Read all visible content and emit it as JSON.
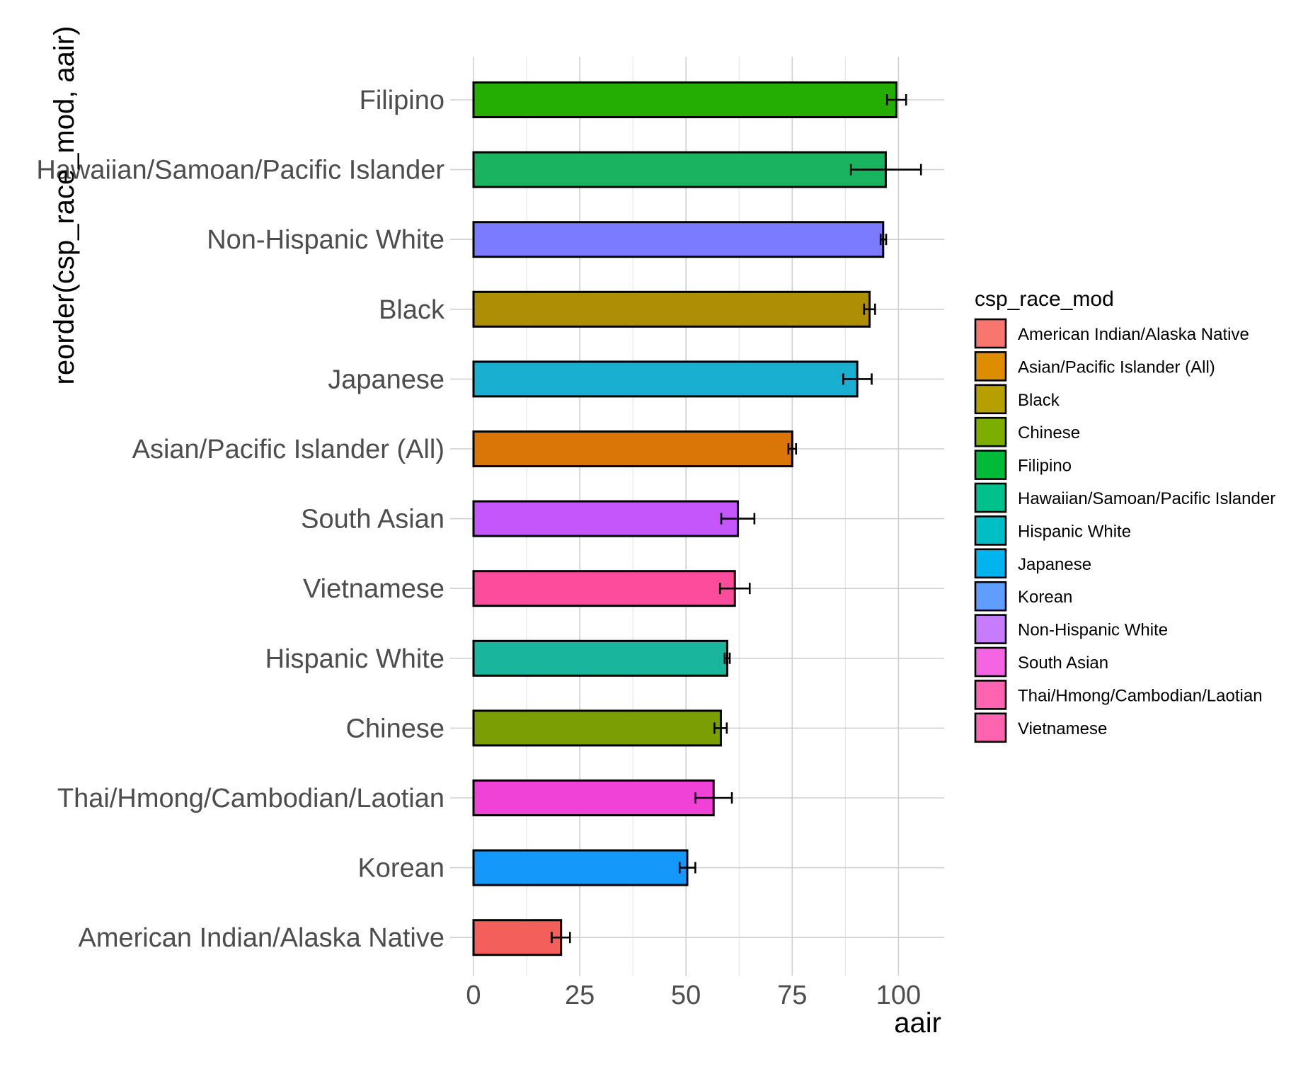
{
  "chart_data": {
    "type": "bar",
    "orientation": "horizontal",
    "xlabel": "aair",
    "ylabel": "reorder(csp_race_mod, aair)",
    "xlim": [
      0,
      110
    ],
    "xticks": [
      "0",
      "25",
      "50",
      "75",
      "100"
    ],
    "grid": true,
    "legend_position": "right",
    "legend": {
      "title": "csp_race_mod",
      "items": [
        {
          "label": "American Indian/Alaska Native",
          "color": "#F8766D"
        },
        {
          "label": "Asian/Pacific Islander (All)",
          "color": "#DE8C00"
        },
        {
          "label": "Black",
          "color": "#B79F00"
        },
        {
          "label": "Chinese",
          "color": "#7CAE00"
        },
        {
          "label": "Filipino",
          "color": "#00BA38"
        },
        {
          "label": "Hawaiian/Samoan/Pacific Islander",
          "color": "#00C08B"
        },
        {
          "label": "Hispanic White",
          "color": "#00BFC4"
        },
        {
          "label": "Japanese",
          "color": "#00B4F0"
        },
        {
          "label": "Korean",
          "color": "#619CFF"
        },
        {
          "label": "Non-Hispanic White",
          "color": "#C77CFF"
        },
        {
          "label": "South Asian",
          "color": "#F564E3"
        },
        {
          "label": "Thai/Hmong/Cambodian/Laotian",
          "color": "#FF64B0"
        },
        {
          "label": "Vietnamese",
          "color": "#FF64B0"
        }
      ]
    },
    "bars": [
      {
        "category": "Filipino",
        "value": 99.5,
        "err_low": 97.3,
        "err_high": 101.8,
        "color": "#24AE04"
      },
      {
        "category": "Hawaiian/Samoan/Pacific Islander",
        "value": 97.0,
        "err_low": 88.8,
        "err_high": 105.3,
        "color": "#1AB460"
      },
      {
        "category": "Non-Hispanic White",
        "value": 96.4,
        "err_low": 95.8,
        "err_high": 97.1,
        "color": "#7A7BFF"
      },
      {
        "category": "Black",
        "value": 93.2,
        "err_low": 91.9,
        "err_high": 94.5,
        "color": "#AD8E05"
      },
      {
        "category": "Japanese",
        "value": 90.3,
        "err_low": 87.0,
        "err_high": 93.7,
        "color": "#19AFD0"
      },
      {
        "category": "Asian/Pacific Islander (All)",
        "value": 75.0,
        "err_low": 74.1,
        "err_high": 75.9,
        "color": "#DA7508"
      },
      {
        "category": "South Asian",
        "value": 62.2,
        "err_low": 58.3,
        "err_high": 66.1,
        "color": "#C556FB"
      },
      {
        "category": "Vietnamese",
        "value": 61.5,
        "err_low": 58.0,
        "err_high": 65.0,
        "color": "#FC4C9B"
      },
      {
        "category": "Hispanic White",
        "value": 59.7,
        "err_low": 59.1,
        "err_high": 60.3,
        "color": "#19B69D"
      },
      {
        "category": "Chinese",
        "value": 58.2,
        "err_low": 56.7,
        "err_high": 59.6,
        "color": "#7B9E04"
      },
      {
        "category": "Thai/Hmong/Cambodian/Laotian",
        "value": 56.5,
        "err_low": 52.2,
        "err_high": 60.8,
        "color": "#F142D7"
      },
      {
        "category": "Korean",
        "value": 50.3,
        "err_low": 48.5,
        "err_high": 52.2,
        "color": "#1499FB"
      },
      {
        "category": "American Indian/Alaska Native",
        "value": 20.6,
        "err_low": 18.4,
        "err_high": 22.7,
        "color": "#F3605B"
      }
    ]
  }
}
